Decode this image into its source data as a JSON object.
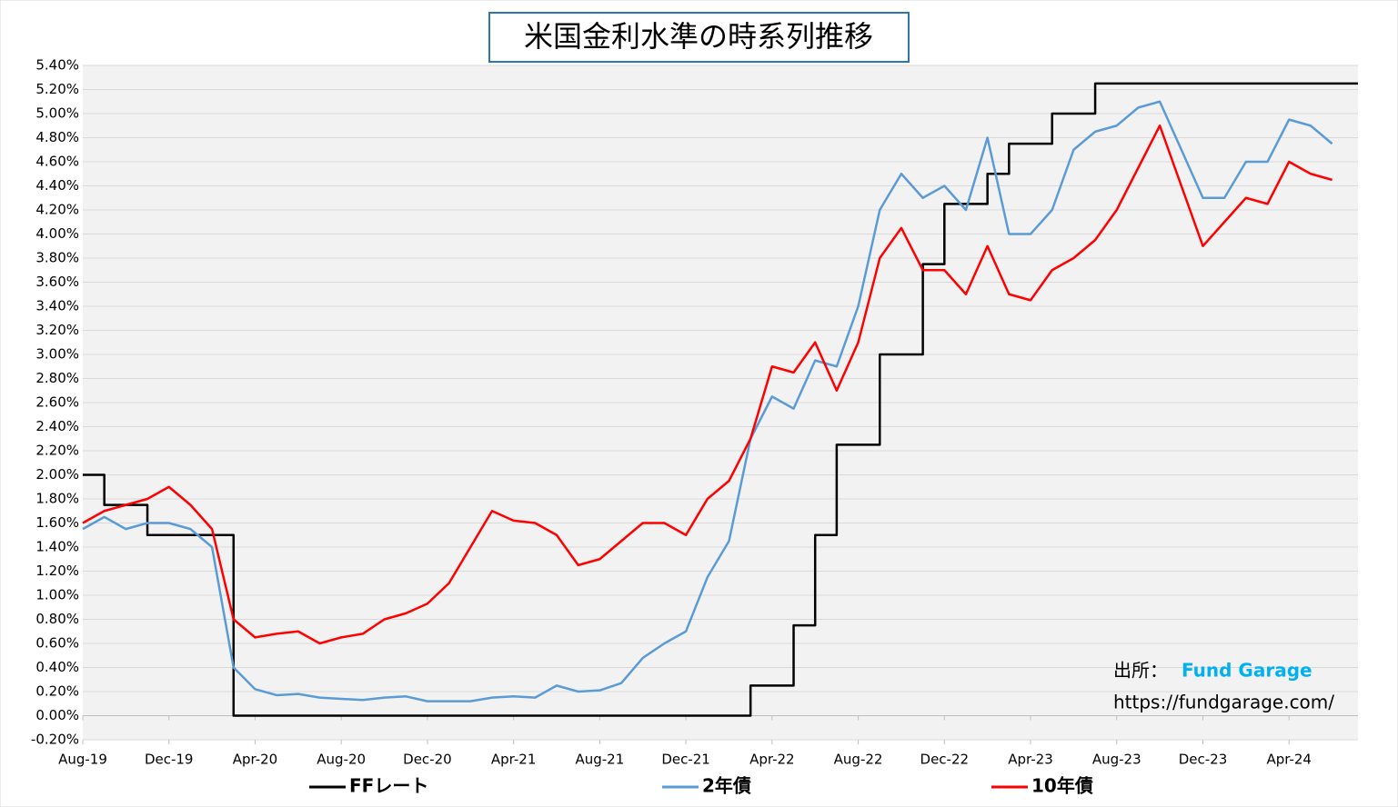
{
  "chart_data": {
    "type": "line",
    "title": "米国金利水準の時系列推移",
    "categories": [
      "Aug-19",
      null,
      null,
      null,
      "Dec-19",
      null,
      null,
      null,
      "Apr-20",
      null,
      null,
      null,
      "Aug-20",
      null,
      null,
      null,
      "Dec-20",
      null,
      null,
      null,
      "Apr-21",
      null,
      null,
      null,
      "Aug-21",
      null,
      null,
      null,
      "Dec-21",
      null,
      null,
      null,
      "Apr-22",
      null,
      null,
      null,
      "Aug-22",
      null,
      null,
      null,
      "Dec-22",
      null,
      null,
      null,
      "Apr-23",
      null,
      null,
      null,
      "Aug-23",
      null,
      null,
      null,
      "Dec-23",
      null,
      null,
      null,
      "Apr-24",
      null,
      null
    ],
    "series": [
      {
        "name": "FFレート",
        "color": "#000000",
        "line_style": "step",
        "values": [
          2.0,
          1.75,
          1.75,
          1.5,
          1.5,
          1.5,
          1.5,
          0.0,
          0.0,
          0.0,
          0.0,
          0.0,
          0.0,
          0.0,
          0.0,
          0.0,
          0.0,
          0.0,
          0.0,
          0.0,
          0.0,
          0.0,
          0.0,
          0.0,
          0.0,
          0.0,
          0.0,
          0.0,
          0.0,
          0.0,
          0.0,
          0.25,
          0.25,
          0.75,
          1.5,
          2.25,
          2.25,
          3.0,
          3.0,
          3.75,
          4.25,
          4.25,
          4.5,
          4.75,
          4.75,
          5.0,
          5.0,
          5.25,
          5.25,
          5.25,
          5.25,
          5.25,
          5.25,
          5.25,
          5.25,
          5.25,
          5.25,
          5.25,
          5.25
        ]
      },
      {
        "name": "2年債",
        "color": "#5b9bd5",
        "values": [
          1.55,
          1.65,
          1.55,
          1.6,
          1.6,
          1.55,
          1.4,
          0.4,
          0.22,
          0.17,
          0.18,
          0.15,
          0.14,
          0.13,
          0.15,
          0.16,
          0.12,
          0.12,
          0.12,
          0.15,
          0.16,
          0.15,
          0.25,
          0.2,
          0.21,
          0.27,
          0.48,
          0.6,
          0.7,
          1.15,
          1.45,
          2.3,
          2.65,
          2.55,
          2.95,
          2.9,
          3.4,
          4.2,
          4.5,
          4.3,
          4.4,
          4.2,
          4.8,
          4.0,
          4.0,
          4.2,
          4.7,
          4.85,
          4.9,
          5.05,
          5.1,
          4.7,
          4.3,
          4.3,
          4.6,
          4.6,
          4.95,
          4.9,
          4.75
        ]
      },
      {
        "name": "10年債",
        "color": "#ff0000",
        "values": [
          1.6,
          1.7,
          1.75,
          1.8,
          1.9,
          1.75,
          1.55,
          0.8,
          0.65,
          0.68,
          0.7,
          0.6,
          0.65,
          0.68,
          0.8,
          0.85,
          0.93,
          1.1,
          1.4,
          1.7,
          1.62,
          1.6,
          1.5,
          1.25,
          1.3,
          1.45,
          1.6,
          1.6,
          1.5,
          1.8,
          1.95,
          2.3,
          2.9,
          2.85,
          3.1,
          2.7,
          3.1,
          3.8,
          4.05,
          3.7,
          3.7,
          3.5,
          3.9,
          3.5,
          3.45,
          3.7,
          3.8,
          3.95,
          4.2,
          4.55,
          4.9,
          4.4,
          3.9,
          4.1,
          4.3,
          4.25,
          4.6,
          4.5,
          4.45
        ]
      }
    ],
    "ylim": [
      -0.2,
      5.4
    ],
    "yticks": [
      {
        "value": -0.2,
        "label": "-0.20%"
      },
      {
        "value": 0,
        "label": "0.00%"
      },
      {
        "value": 0.2,
        "label": "0.20%"
      },
      {
        "value": 0.4,
        "label": "0.40%"
      },
      {
        "value": 0.6,
        "label": "0.60%"
      },
      {
        "value": 0.8,
        "label": "0.80%"
      },
      {
        "value": 1.0,
        "label": "1.00%"
      },
      {
        "value": 1.2,
        "label": "1.20%"
      },
      {
        "value": 1.4,
        "label": "1.40%"
      },
      {
        "value": 1.6,
        "label": "1.60%"
      },
      {
        "value": 1.8,
        "label": "1.80%"
      },
      {
        "value": 2.0,
        "label": "2.00%"
      },
      {
        "value": 2.2,
        "label": "2.20%"
      },
      {
        "value": 2.4,
        "label": "2.40%"
      },
      {
        "value": 2.6,
        "label": "2.60%"
      },
      {
        "value": 2.8,
        "label": "2.80%"
      },
      {
        "value": 3.0,
        "label": "3.00%"
      },
      {
        "value": 3.2,
        "label": "3.20%"
      },
      {
        "value": 3.4,
        "label": "3.40%"
      },
      {
        "value": 3.6,
        "label": "3.60%"
      },
      {
        "value": 3.8,
        "label": "3.80%"
      },
      {
        "value": 4.0,
        "label": "4.00%"
      },
      {
        "value": 4.2,
        "label": "4.20%"
      },
      {
        "value": 4.4,
        "label": "4.40%"
      },
      {
        "value": 4.6,
        "label": "4.60%"
      },
      {
        "value": 4.8,
        "label": "4.80%"
      },
      {
        "value": 5.0,
        "label": "5.00%"
      },
      {
        "value": 5.2,
        "label": "5.20%"
      },
      {
        "value": 5.4,
        "label": "5.40%"
      }
    ],
    "grid": true,
    "legend": "bottom",
    "annotations": [
      "出所：",
      "Fund Garage",
      "https://fundgarage.com/"
    ]
  }
}
